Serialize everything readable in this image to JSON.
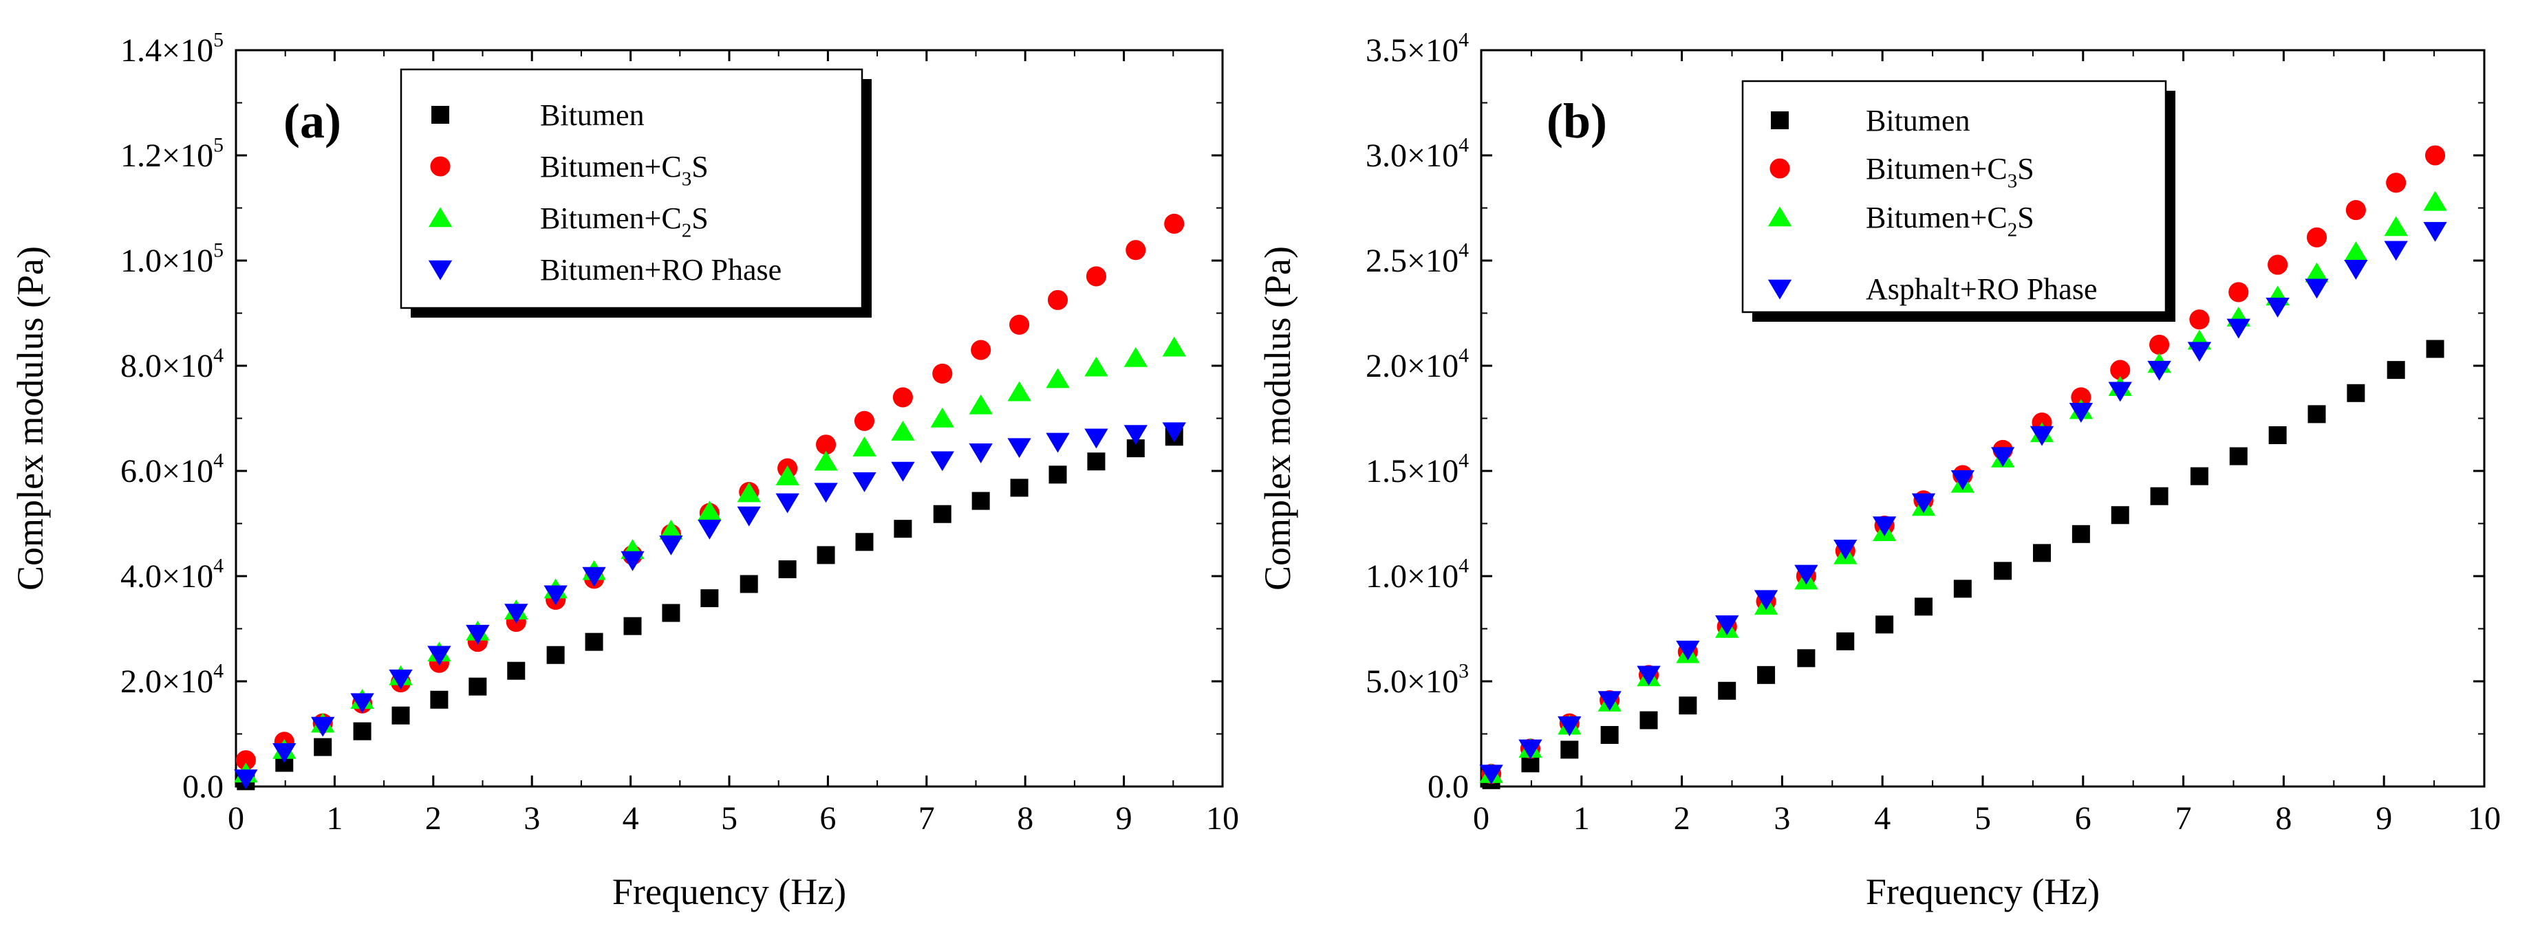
{
  "chart_data": [
    {
      "type": "scatter",
      "panel_label": "(a)",
      "xlabel": "Frequency (Hz)",
      "ylabel": "Complex modulus (Pa)",
      "xlim": [
        0,
        10
      ],
      "ylim": [
        0,
        140000
      ],
      "x_ticks": [
        0,
        1,
        2,
        3,
        4,
        5,
        6,
        7,
        8,
        9,
        10
      ],
      "x_tick_labels": [
        "0",
        "1",
        "2",
        "3",
        "4",
        "5",
        "6",
        "7",
        "8",
        "9",
        "10"
      ],
      "y_ticks": [
        0,
        20000,
        40000,
        60000,
        80000,
        100000,
        120000,
        140000
      ],
      "y_tick_labels": [
        {
          "mantissa": "0.0",
          "exp": ""
        },
        {
          "mantissa": "2.0×10",
          "exp": "4"
        },
        {
          "mantissa": "4.0×10",
          "exp": "4"
        },
        {
          "mantissa": "6.0×10",
          "exp": "4"
        },
        {
          "mantissa": "8.0×10",
          "exp": "4"
        },
        {
          "mantissa": "1.0×10",
          "exp": "5"
        },
        {
          "mantissa": "1.2×10",
          "exp": "5"
        },
        {
          "mantissa": "1.4×10",
          "exp": "5"
        }
      ],
      "legend_position": "top-center",
      "x": [
        0.1,
        0.49,
        0.88,
        1.28,
        1.67,
        2.06,
        2.45,
        2.84,
        3.24,
        3.63,
        4.02,
        4.41,
        4.8,
        5.2,
        5.59,
        5.98,
        6.37,
        6.76,
        7.16,
        7.55,
        7.94,
        8.33,
        8.72,
        9.12,
        9.51
      ],
      "series": [
        {
          "name": "Bitumen",
          "sub": "",
          "tail": "",
          "marker": "square",
          "color": "#000000",
          "values": [
            1000,
            4500,
            7500,
            10500,
            13500,
            16500,
            19000,
            22000,
            25000,
            27500,
            30500,
            33000,
            35800,
            38500,
            41300,
            44000,
            46500,
            49000,
            51800,
            54300,
            56800,
            59300,
            61800,
            64300,
            66500
          ]
        },
        {
          "name": "Bitumen+C",
          "sub": "3",
          "tail": "S",
          "marker": "circle",
          "color": "#ff0000",
          "values": [
            5000,
            8500,
            12000,
            15800,
            19800,
            23500,
            27500,
            31300,
            35500,
            39500,
            44000,
            48000,
            52000,
            56000,
            60500,
            65000,
            69500,
            74000,
            78500,
            83000,
            87800,
            92500,
            97000,
            102000,
            107000
          ]
        },
        {
          "name": "Bitumen+C",
          "sub": "2",
          "tail": "S",
          "marker": "triangle-up",
          "color": "#00ff00",
          "values": [
            2500,
            7000,
            12000,
            16500,
            21000,
            25500,
            29500,
            33500,
            37500,
            41000,
            45000,
            48700,
            52300,
            55800,
            59000,
            61800,
            64500,
            67500,
            70000,
            72500,
            75000,
            77500,
            79700,
            81500,
            83500
          ]
        },
        {
          "name": "Bitumen+RO Phase",
          "sub": "",
          "tail": "",
          "marker": "triangle-down",
          "color": "#0000ff",
          "values": [
            1500,
            6500,
            11500,
            16000,
            20500,
            25000,
            29000,
            33000,
            36500,
            40000,
            43000,
            46000,
            49000,
            51500,
            54000,
            56000,
            58000,
            60000,
            62000,
            63500,
            64500,
            65500,
            66300,
            67000,
            67500
          ]
        }
      ]
    },
    {
      "type": "scatter",
      "panel_label": "(b)",
      "xlabel": "Frequency (Hz)",
      "ylabel": "Complex modulus (Pa)",
      "xlim": [
        0,
        10
      ],
      "ylim": [
        0,
        35000
      ],
      "x_ticks": [
        0,
        1,
        2,
        3,
        4,
        5,
        6,
        7,
        8,
        9,
        10
      ],
      "x_tick_labels": [
        "0",
        "1",
        "2",
        "3",
        "4",
        "5",
        "6",
        "7",
        "8",
        "9",
        "10"
      ],
      "y_ticks": [
        0,
        5000,
        10000,
        15000,
        20000,
        25000,
        30000,
        35000
      ],
      "y_tick_labels": [
        {
          "mantissa": "0.0",
          "exp": ""
        },
        {
          "mantissa": "5.0×10",
          "exp": "3"
        },
        {
          "mantissa": "1.0×10",
          "exp": "4"
        },
        {
          "mantissa": "1.5×10",
          "exp": "4"
        },
        {
          "mantissa": "2.0×10",
          "exp": "4"
        },
        {
          "mantissa": "2.5×10",
          "exp": "4"
        },
        {
          "mantissa": "3.0×10",
          "exp": "4"
        },
        {
          "mantissa": "3.5×10",
          "exp": "4"
        }
      ],
      "legend_position": "top-center",
      "x": [
        0.1,
        0.49,
        0.88,
        1.28,
        1.67,
        2.06,
        2.45,
        2.84,
        3.24,
        3.63,
        4.02,
        4.41,
        4.8,
        5.2,
        5.59,
        5.98,
        6.37,
        6.76,
        7.16,
        7.55,
        7.94,
        8.33,
        8.72,
        9.12,
        9.51
      ],
      "series": [
        {
          "name": "Bitumen",
          "sub": "",
          "tail": "",
          "marker": "square",
          "color": "#000000",
          "values": [
            300,
            1100,
            1750,
            2450,
            3150,
            3850,
            4550,
            5300,
            6100,
            6900,
            7700,
            8550,
            9400,
            10250,
            11100,
            12000,
            12900,
            13800,
            14750,
            15700,
            16700,
            17700,
            18700,
            19800,
            20800
          ]
        },
        {
          "name": "Bitumen+C",
          "sub": "3",
          "tail": "S",
          "marker": "circle",
          "color": "#ff0000",
          "values": [
            600,
            1800,
            3000,
            4100,
            5300,
            6400,
            7600,
            8800,
            10000,
            11200,
            12400,
            13600,
            14800,
            16000,
            17300,
            18500,
            19800,
            21000,
            22200,
            23500,
            24800,
            26100,
            27400,
            28700,
            30000
          ]
        },
        {
          "name": "Bitumen+C",
          "sub": "2",
          "tail": "S",
          "marker": "triangle-up",
          "color": "#00ff00",
          "values": [
            600,
            1800,
            2900,
            4000,
            5200,
            6300,
            7500,
            8600,
            9800,
            11000,
            12100,
            13300,
            14400,
            15600,
            16800,
            17900,
            19000,
            20100,
            21200,
            22300,
            23300,
            24400,
            25400,
            26600,
            27800
          ]
        },
        {
          "name": "Asphalt+RO Phase",
          "sub": "",
          "tail": "",
          "marker": "triangle-down",
          "color": "#0000ff",
          "values": [
            600,
            1800,
            2900,
            4100,
            5300,
            6500,
            7700,
            8900,
            10100,
            11300,
            12400,
            13500,
            14600,
            15700,
            16700,
            17800,
            18800,
            19800,
            20700,
            21800,
            22800,
            23700,
            24600,
            25500,
            26400
          ]
        }
      ]
    }
  ]
}
